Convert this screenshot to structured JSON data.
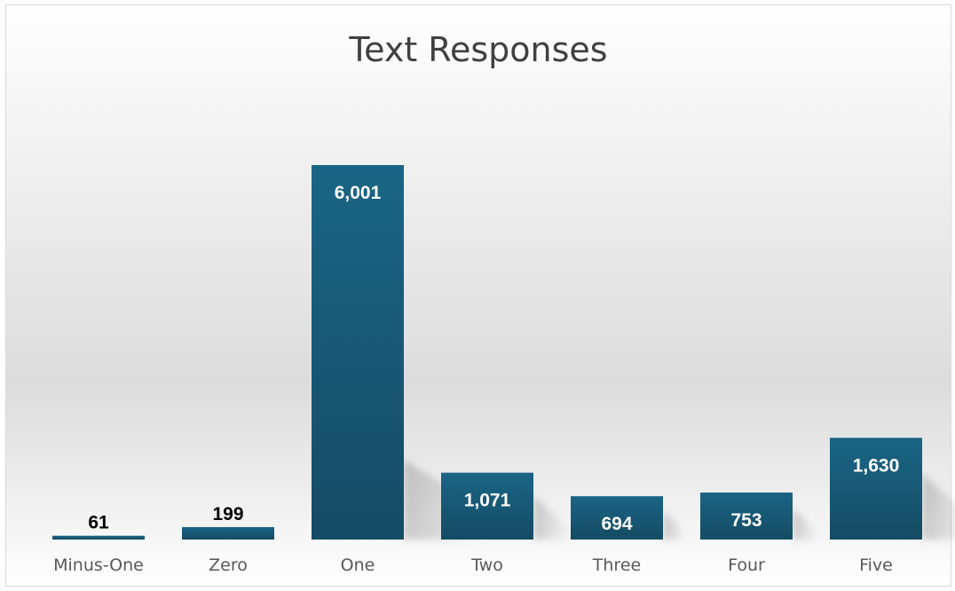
{
  "chart_data": {
    "type": "bar",
    "title": "Text Responses",
    "xlabel": "",
    "ylabel": "",
    "categories": [
      "Minus-One",
      "Zero",
      "One",
      "Two",
      "Three",
      "Four",
      "Five"
    ],
    "values": [
      61,
      199,
      6001,
      1071,
      694,
      753,
      1630
    ],
    "value_labels": [
      "61",
      "199",
      "6,001",
      "1,071",
      "694",
      "753",
      "1,630"
    ],
    "ylim": [
      0,
      6001
    ],
    "grid": false,
    "legend": "none",
    "colors": {
      "bar_top": "#1a6585",
      "bar_bottom": "#154b64",
      "label_inside": "#ffffff",
      "label_outside": "#000000",
      "tick_label": "#595959"
    }
  }
}
